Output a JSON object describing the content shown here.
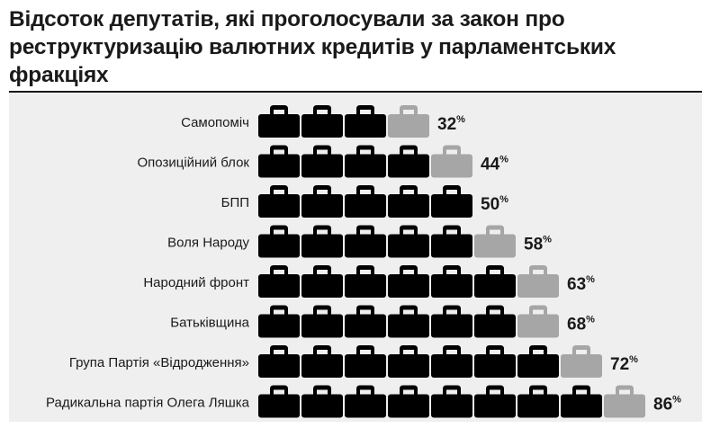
{
  "title": "Відсоток депутатів, які проголосували за закон про реструктуризацію валютних кредитів у парламентських фракціях",
  "colors": {
    "icon": "#000000",
    "icon_faded": "#a6a6a6",
    "panel": "#efefef",
    "text": "#1a1a1a"
  },
  "icon": "briefcase-icon",
  "chart_data": {
    "type": "bar",
    "unit": "%",
    "percent_per_icon": 10,
    "categories": [
      "Самопоміч",
      "Опозиційний блок",
      "БПП",
      "Воля Народу",
      "Народний фронт",
      "Батьківщина",
      "Група Партія «Відродження»",
      "Радикальна партія Олега Ляшка"
    ],
    "values": [
      32,
      44,
      50,
      58,
      63,
      68,
      72,
      86
    ],
    "value_labels": [
      "32",
      "44",
      "50",
      "58",
      "63",
      "68",
      "72",
      "86"
    ]
  }
}
